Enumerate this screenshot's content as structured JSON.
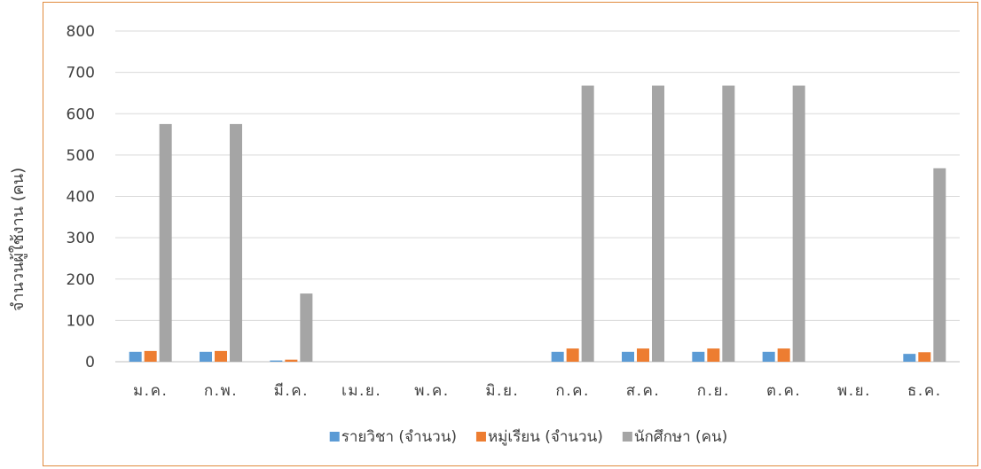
{
  "chart_data": {
    "type": "bar",
    "title": "",
    "xlabel": "",
    "ylabel": "จำนวนผู้ใช้งาน  (คน)",
    "ylim": [
      0,
      800
    ],
    "yticks": [
      0,
      100,
      200,
      300,
      400,
      500,
      600,
      700,
      800
    ],
    "grid": true,
    "legend_position": "bottom",
    "categories": [
      "ม.ค.",
      "ก.พ.",
      "มี.ค.",
      "เม.ย.",
      "พ.ค.",
      "มิ.ย.",
      "ก.ค.",
      "ส.ค.",
      "ก.ย.",
      "ต.ค.",
      "พ.ย.",
      "ธ.ค."
    ],
    "series": [
      {
        "name": "รายวิชา (จำนวน)",
        "color": "#5b9bd5",
        "values": [
          24,
          24,
          3,
          0,
          0,
          0,
          24,
          24,
          24,
          24,
          0,
          19
        ]
      },
      {
        "name": "หมู่เรียน (จำนวน)",
        "color": "#ed7d31",
        "values": [
          26,
          26,
          5,
          0,
          0,
          0,
          32,
          32,
          32,
          32,
          0,
          23
        ]
      },
      {
        "name": "นักศึกษา (คน)",
        "color": "#a5a5a5",
        "values": [
          575,
          575,
          165,
          0,
          0,
          0,
          668,
          668,
          668,
          668,
          0,
          468
        ]
      }
    ]
  }
}
